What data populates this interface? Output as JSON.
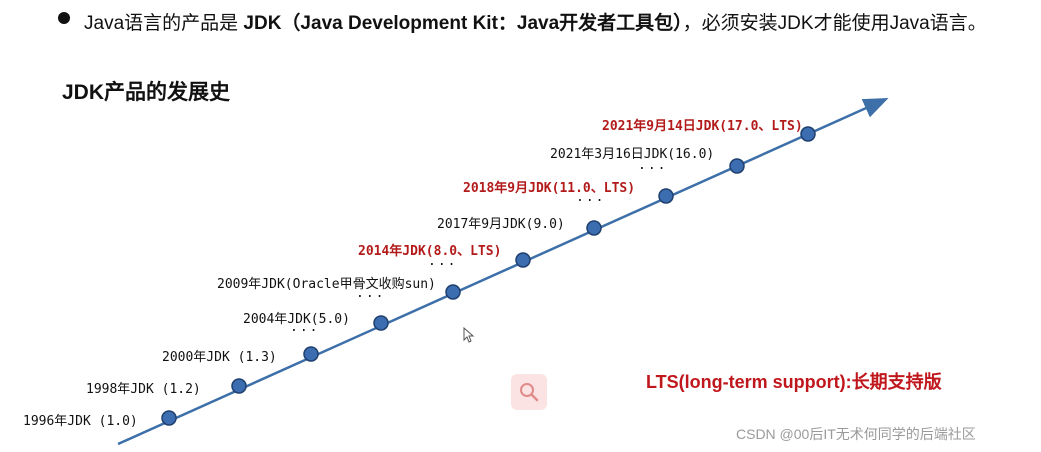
{
  "intro": {
    "prefix": "Java语言的产品是 ",
    "product_bold": "JDK（Java Development Kit：Java开发者工具包）",
    "suffix": "，必须安装JDK才能使用Java语言。"
  },
  "section_title": "JDK产品的发展史",
  "timeline": {
    "milestones": [
      {
        "label": "1996年JDK (1.0)",
        "lts": false
      },
      {
        "label": "1998年JDK (1.2)",
        "lts": false
      },
      {
        "label": "2000年JDK (1.3)",
        "lts": false
      },
      {
        "label": "2004年JDK(5.0)",
        "lts": false
      },
      {
        "label": "2009年JDK(Oracle甲骨文收购sun)",
        "lts": false
      },
      {
        "label": "2014年JDK(8.0、LTS)",
        "lts": true
      },
      {
        "label": "2017年9月JDK(9.0)",
        "lts": false
      },
      {
        "label": "2018年9月JDK(11.0、LTS)",
        "lts": true
      },
      {
        "label": "2021年3月16日JDK(16.0)",
        "lts": false
      },
      {
        "label": "2021年9月14日JDK(17.0、LTS)",
        "lts": true
      }
    ],
    "ellipsis": "...",
    "line_color": "#3d6fa8",
    "node_color": "#3c6db0",
    "lts_color": "#b31b1b"
  },
  "lts_note": "LTS(long-term support):长期支持版",
  "watermark": "CSDN @00后IT无术何同学的后端社区",
  "icons": {
    "search": "search-icon",
    "cursor": "mouse-cursor-icon"
  }
}
